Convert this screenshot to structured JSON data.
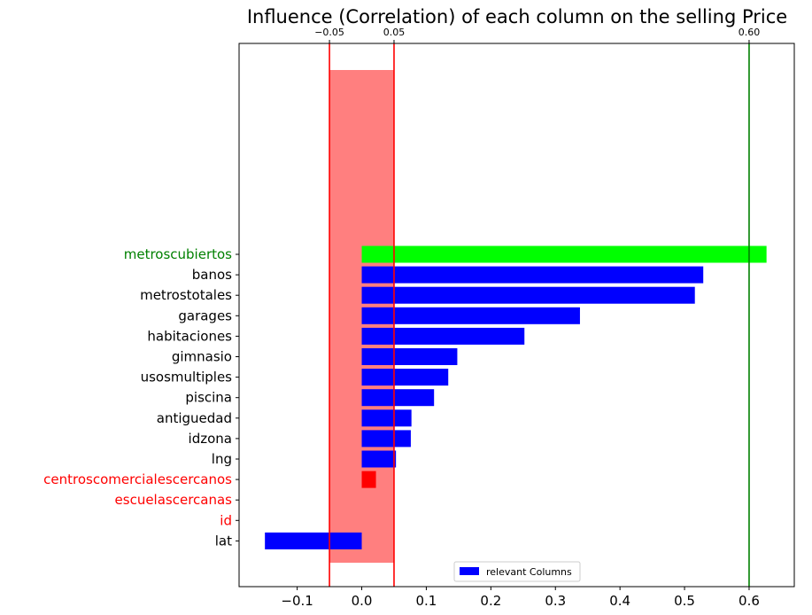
{
  "chart_data": {
    "type": "bar",
    "orientation": "horizontal",
    "title": "Influence (Correlation) of each column on the selling Price",
    "xlabel": "",
    "ylabel": "",
    "xlim": [
      -0.19,
      0.67
    ],
    "x_ticks": [
      -0.1,
      0.0,
      0.1,
      0.2,
      0.3,
      0.4,
      0.5,
      0.6
    ],
    "x_tick_labels": [
      "−0.1",
      "0.0",
      "0.1",
      "0.2",
      "0.3",
      "0.4",
      "0.5",
      "0.6"
    ],
    "top_ticks": [
      -0.05,
      0.05,
      0.6
    ],
    "top_tick_labels": [
      "−0.05",
      "0.05",
      "0.60"
    ],
    "categories": [
      "metroscubiertos",
      "banos",
      "metrostotales",
      "garages",
      "habitaciones",
      "gimnasio",
      "usosmultiples",
      "piscina",
      "antiguedad",
      "idzona",
      "lng",
      "centroscomercialescercanos",
      "escuelascercanas",
      "id",
      "lat"
    ],
    "values": [
      0.627,
      0.529,
      0.516,
      0.338,
      0.252,
      0.148,
      0.134,
      0.112,
      0.077,
      0.076,
      0.053,
      0.022,
      0.0,
      0.0,
      -0.15
    ],
    "bar_colors": [
      "#00ff00",
      "#0000ff",
      "#0000ff",
      "#0000ff",
      "#0000ff",
      "#0000ff",
      "#0000ff",
      "#0000ff",
      "#0000ff",
      "#0000ff",
      "#0000ff",
      "#ff0000",
      "#ff0000",
      "#ff0000",
      "#0000ff"
    ],
    "label_colors": [
      "#008000",
      "#000000",
      "#000000",
      "#000000",
      "#000000",
      "#000000",
      "#000000",
      "#000000",
      "#000000",
      "#000000",
      "#000000",
      "#ff0000",
      "#ff0000",
      "#ff0000",
      "#000000"
    ],
    "vertical_lines": [
      {
        "x": -0.05,
        "color": "#ff0000"
      },
      {
        "x": 0.05,
        "color": "#ff0000"
      },
      {
        "x": 0.6,
        "color": "#008000"
      }
    ],
    "shaded_band": {
      "x_from": -0.05,
      "x_to": 0.05,
      "color": "#ff0000",
      "opacity": 0.5
    },
    "legend": {
      "entries": [
        {
          "label": "relevant Columns",
          "color": "#0000ff"
        }
      ],
      "placement": "bottom-center"
    },
    "grid": false
  }
}
